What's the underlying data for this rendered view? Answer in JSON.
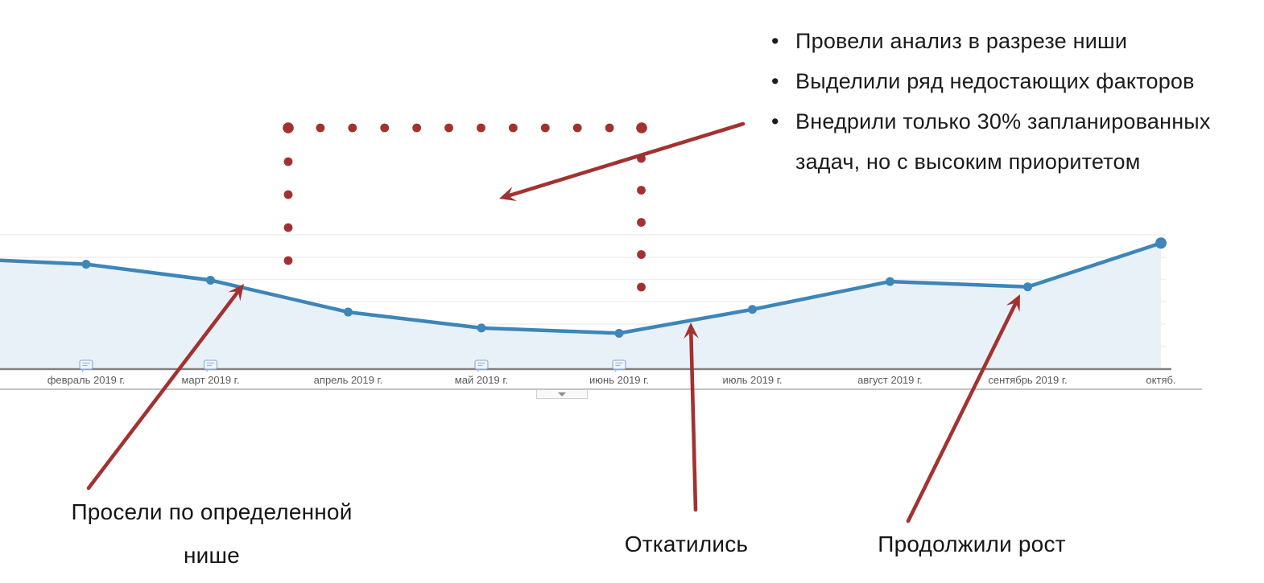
{
  "colors": {
    "annotation_red": "#A23230",
    "line_blue": "#3E85B8",
    "area_fill_blue": "#E9F1F8",
    "grid_line": "#EFEFEF",
    "axis_line": "#828282",
    "divider_line": "#C4C4C4",
    "tick_label_gray": "#5A5A5A",
    "text_black": "#1B1B1B",
    "annotation_marker_border": "#9BB5D8",
    "annotation_marker_fill": "#EEF4FB",
    "collapse_arrow_gray": "#8F8F8F"
  },
  "notes_list": {
    "lines": [
      {
        "bullet": "•",
        "text": "Провели анализ в разрезе ниши"
      },
      {
        "bullet": "•",
        "text": "Выделили ряд недостающих факторов"
      },
      {
        "bullet": "•",
        "text": "Внедрили только 30% запланированных"
      },
      {
        "bullet": "",
        "text": "задач, но с высоким приоритетом"
      }
    ]
  },
  "callouts": {
    "drop_line1": "Просели по определенной",
    "drop_line2": "нише",
    "rollback": "Откатились",
    "growth": "Продолжили рост"
  },
  "x_axis": {
    "tick_labels": [
      "февраль 2019 г.",
      "март 2019 г.",
      "апрель 2019 г.",
      "май 2019 г.",
      "июнь 2019 г.",
      "июль 2019 г.",
      "август 2019 г.",
      "сентябрь 2019 г.",
      "октяб."
    ],
    "annotation_marker_month_indices": [
      0,
      1,
      3,
      4
    ]
  },
  "chart_data": {
    "type": "area",
    "x_tick_labels": [
      "февраль 2019 г.",
      "март 2019 г.",
      "апрель 2019 г.",
      "май 2019 г.",
      "июнь 2019 г.",
      "июль 2019 г.",
      "август 2019 г.",
      "сентябрь 2019 г.",
      "октябрь 2019 г."
    ],
    "values": [
      79,
      67,
      43,
      31,
      27,
      45,
      66,
      62,
      95
    ],
    "lead_in_value": 82,
    "values_are_estimates": true,
    "title": "",
    "xlabel": "",
    "ylabel": "",
    "ylim": [
      0,
      100
    ],
    "y_axis_labels_visible": false,
    "grid": true,
    "legend": "none",
    "line_color": "#3E85B8",
    "area_color": "#E9F1F8",
    "x_spacing": "calendar-days",
    "highlight_box_months": [
      "май 2019 г.",
      "июнь 2019 г."
    ]
  }
}
